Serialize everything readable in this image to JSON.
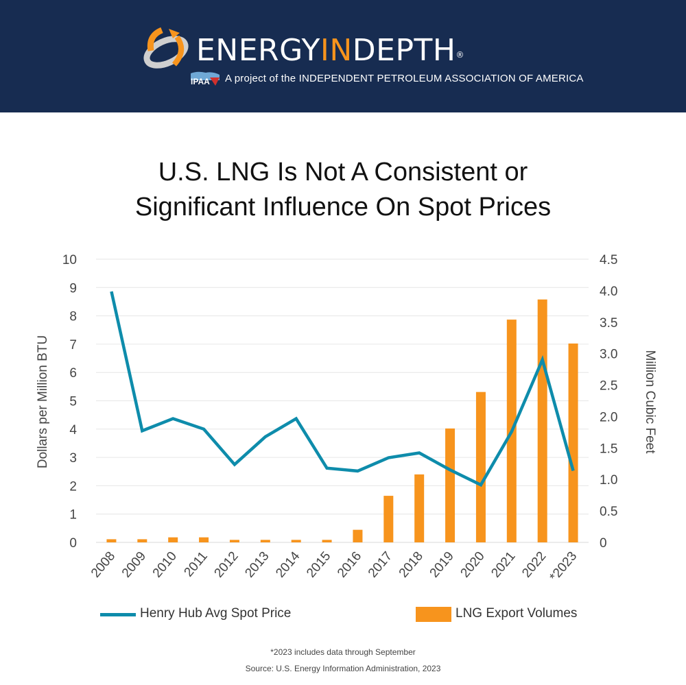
{
  "header": {
    "brand_prefix": "ENERGY",
    "brand_highlight": "IN",
    "brand_suffix": "DEPTH",
    "registered": "®",
    "ipaa_label": "IPAA",
    "tagline": "A project of the INDEPENDENT PETROLEUM ASSOCIATION OF AMERICA",
    "background_color": "#172c51",
    "accent_color": "#f7941d"
  },
  "footnote": "*2023 includes data through September",
  "source": "Source: U.S. Energy Information Administration, 2023",
  "chart_data": {
    "type": "bar+line",
    "title": "U.S. LNG Is Not A Consistent or Significant Influence On Spot Prices",
    "title_lines": [
      "U.S. LNG Is Not A Consistent or",
      "Significant Influence On Spot Prices"
    ],
    "categories": [
      "2008",
      "2009",
      "2010",
      "2011",
      "2012",
      "2013",
      "2014",
      "2015",
      "2016",
      "2017",
      "2018",
      "2019",
      "2020",
      "2021",
      "2022",
      "*2023"
    ],
    "ylabel_left": "Dollars per Million BTU",
    "ylabel_right": "Million Cubic Feet",
    "ylim_left": [
      0,
      10
    ],
    "ylim_right": [
      0,
      4.5
    ],
    "yticks_left": [
      "0",
      "1",
      "2",
      "3",
      "4",
      "5",
      "6",
      "7",
      "8",
      "9",
      "10"
    ],
    "yticks_right": [
      "0",
      "0.5",
      "1.0",
      "1.5",
      "2.0",
      "2.5",
      "3.0",
      "3.5",
      "4.0",
      "4.5"
    ],
    "grid": true,
    "legend_position": "bottom",
    "series": [
      {
        "name": "Henry Hub Avg Spot Price",
        "type": "line",
        "axis": "left",
        "color": "#0e8cab",
        "values": [
          8.86,
          3.94,
          4.37,
          4.0,
          2.75,
          3.73,
          4.37,
          2.62,
          2.52,
          2.99,
          3.16,
          2.56,
          2.03,
          3.91,
          6.45,
          2.53
        ]
      },
      {
        "name": "LNG Export Volumes",
        "type": "bar",
        "axis": "right",
        "color": "#f7941d",
        "values": [
          0.05,
          0.05,
          0.08,
          0.08,
          0.04,
          0.04,
          0.04,
          0.04,
          0.2,
          0.74,
          1.08,
          1.81,
          2.39,
          3.54,
          3.86,
          3.16
        ]
      }
    ]
  }
}
